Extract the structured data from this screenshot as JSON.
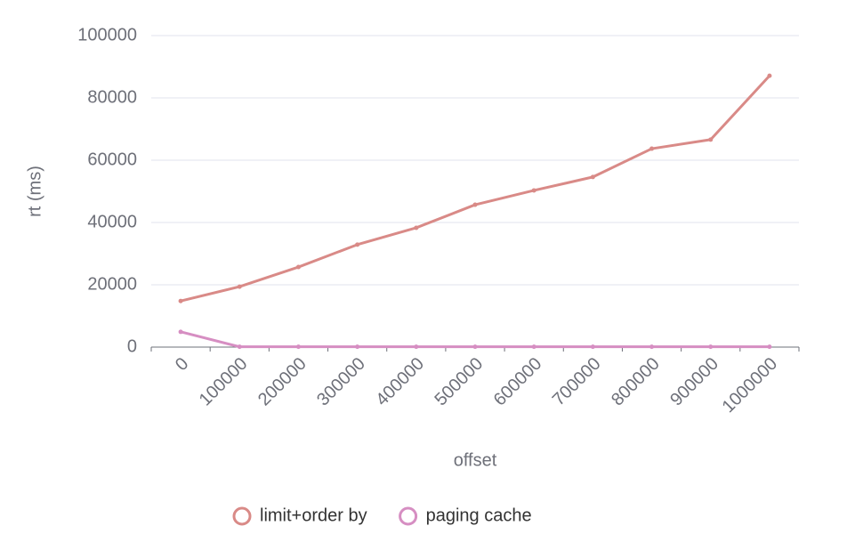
{
  "chart_data": {
    "type": "line",
    "x_label": "offset",
    "y_label": "rt (ms)",
    "categories": [
      "0",
      "100000",
      "200000",
      "300000",
      "400000",
      "500000",
      "600000",
      "700000",
      "800000",
      "900000",
      "1000000"
    ],
    "series": [
      {
        "name": "limit+order by",
        "color": "#d98a87",
        "values": [
          14800,
          19400,
          25700,
          32900,
          38300,
          45700,
          50300,
          54600,
          63700,
          66600,
          87100
        ]
      },
      {
        "name": "paging cache",
        "color": "#d68ec2",
        "values": [
          4900,
          100,
          100,
          100,
          100,
          100,
          100,
          100,
          100,
          100,
          100
        ]
      }
    ],
    "ylim": [
      0,
      100000
    ],
    "yticks": [
      0,
      20000,
      40000,
      60000,
      80000,
      100000
    ],
    "grid": true,
    "legend": "bottom"
  }
}
